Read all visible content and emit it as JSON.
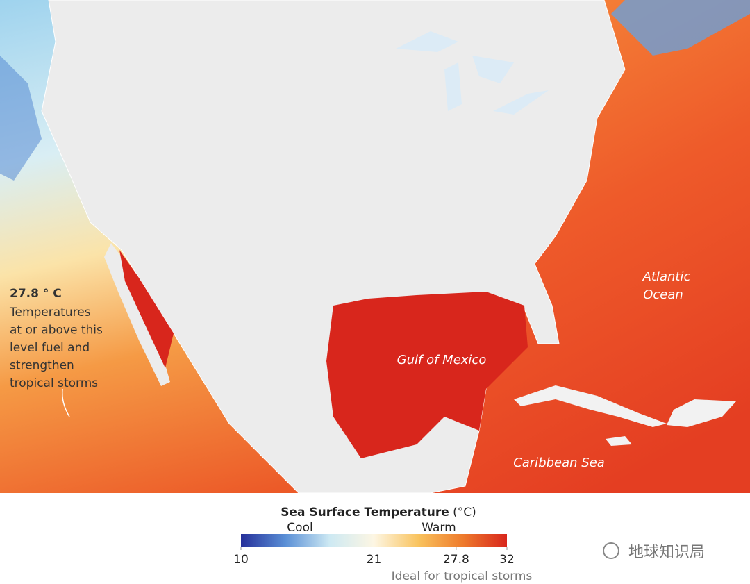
{
  "map": {
    "labels": {
      "gulf": "Gulf of Mexico",
      "atlantic": [
        "Atlantic",
        "Ocean"
      ],
      "caribbean": "Caribbean Sea"
    },
    "annotation": {
      "title": "27.8 ° C",
      "lines": [
        "Temperatures",
        "at or above this",
        "level fuel and",
        "strengthen",
        "tropical storms"
      ]
    }
  },
  "legend": {
    "title": "Sea Surface Temperature",
    "unit": "(°C)",
    "low_label": "Cool",
    "high_label": "Warm",
    "range": [
      10,
      32
    ],
    "ticks": [
      10,
      21,
      27.8,
      32
    ],
    "note": "Ideal for tropical storms",
    "colors": [
      "#26309a",
      "#5a8fd6",
      "#cde9f3",
      "#fdf6e3",
      "#f9c35e",
      "#ee7b2c",
      "#d8261c"
    ]
  },
  "watermark": "地球知识局"
}
